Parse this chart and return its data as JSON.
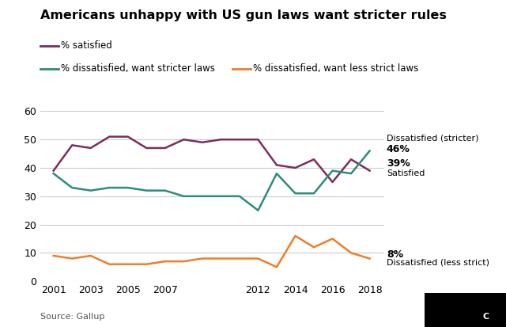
{
  "title": "Americans unhappy with US gun laws want stricter rules",
  "source": "Source: Gallup",
  "years": [
    2001,
    2002,
    2003,
    2004,
    2005,
    2006,
    2007,
    2008,
    2009,
    2010,
    2011,
    2012,
    2013,
    2014,
    2015,
    2016,
    2017,
    2018
  ],
  "satisfied": [
    39,
    48,
    47,
    51,
    51,
    47,
    47,
    50,
    49,
    50,
    50,
    50,
    41,
    40,
    43,
    35,
    43,
    39
  ],
  "dissatisfied_stricter": [
    38,
    33,
    32,
    33,
    33,
    32,
    32,
    30,
    30,
    30,
    30,
    25,
    38,
    31,
    31,
    39,
    38,
    46
  ],
  "dissatisfied_less_strict": [
    9,
    8,
    9,
    6,
    6,
    6,
    7,
    7,
    8,
    8,
    8,
    8,
    5,
    16,
    12,
    15,
    10,
    8
  ],
  "color_satisfied": "#7b2d5e",
  "color_stricter": "#2e8b7a",
  "color_less_strict": "#f07d28",
  "ylim": [
    0,
    60
  ],
  "yticks": [
    0,
    10,
    20,
    30,
    40,
    50,
    60
  ],
  "xticks": [
    2001,
    2003,
    2005,
    2007,
    2012,
    2014,
    2016,
    2018
  ],
  "bg_color": "#ffffff",
  "grid_color": "#cccccc"
}
